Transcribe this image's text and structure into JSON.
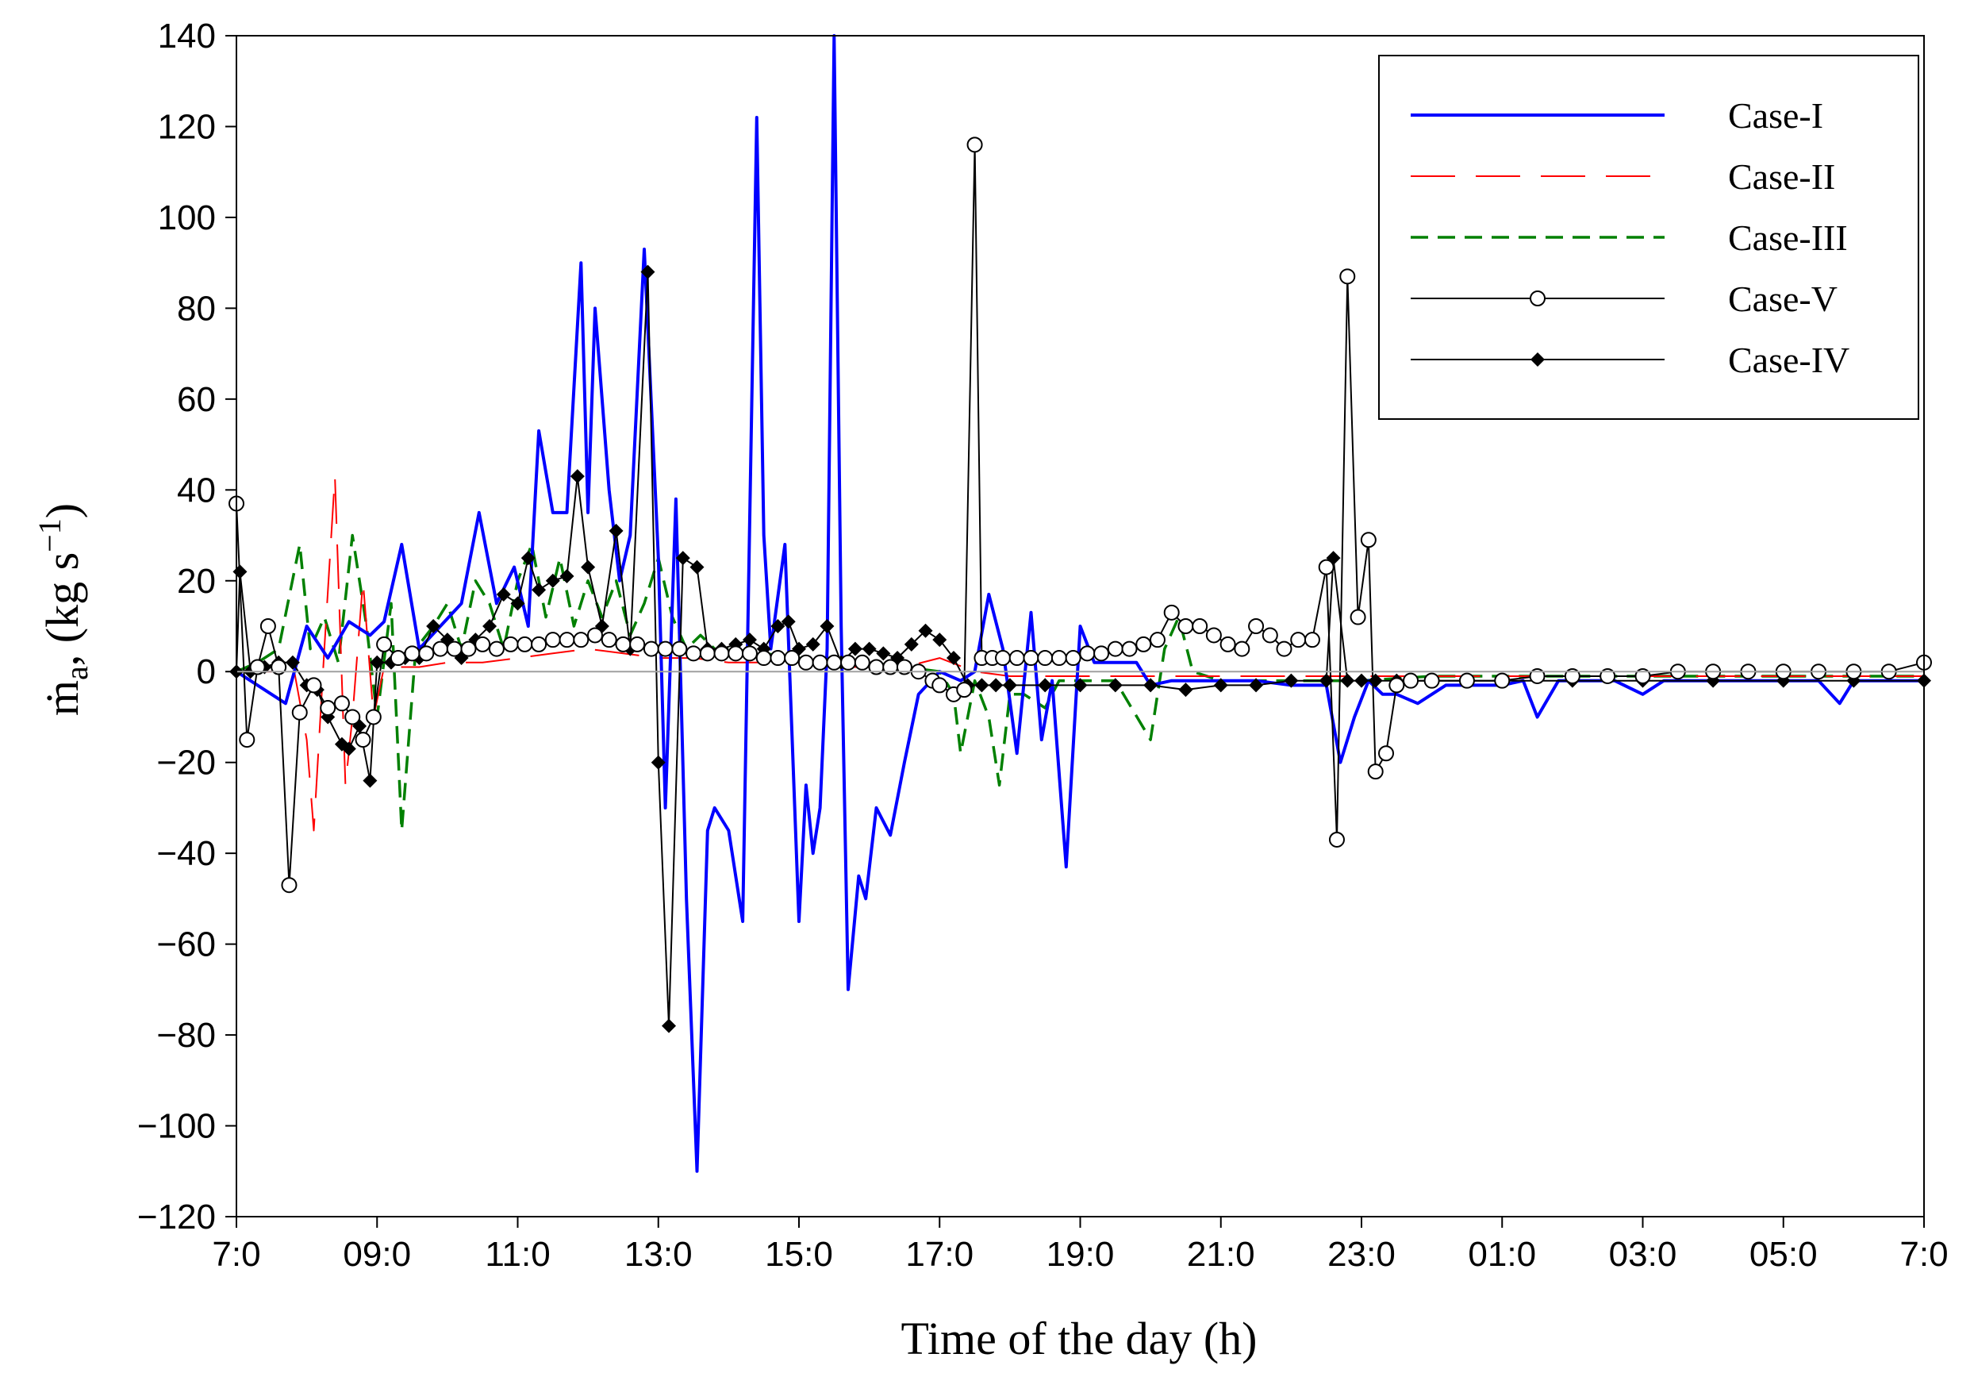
{
  "chart_data": {
    "type": "line",
    "xlabel": "Time of the day (h)",
    "ylabel": {
      "main": "ṁ",
      "sub": "a",
      "rest": ", (kg s",
      "sup": "−1",
      "close": ")"
    },
    "xlim": [
      7,
      31
    ],
    "ylim": [
      -120,
      140
    ],
    "x_ticks": [
      {
        "value": 7,
        "label": "7:0"
      },
      {
        "value": 9,
        "label": "09:0"
      },
      {
        "value": 11,
        "label": "11:0"
      },
      {
        "value": 13,
        "label": "13:0"
      },
      {
        "value": 15,
        "label": "15:0"
      },
      {
        "value": 17,
        "label": "17:0"
      },
      {
        "value": 19,
        "label": "19:0"
      },
      {
        "value": 21,
        "label": "21:0"
      },
      {
        "value": 23,
        "label": "23:0"
      },
      {
        "value": 25,
        "label": "01:0"
      },
      {
        "value": 27,
        "label": "03:0"
      },
      {
        "value": 29,
        "label": "05:0"
      },
      {
        "value": 31,
        "label": "7:0"
      }
    ],
    "y_ticks": [
      140,
      120,
      100,
      80,
      60,
      40,
      20,
      0,
      -20,
      -40,
      -60,
      -80,
      -100,
      -120
    ],
    "zero_line": true,
    "grid": false,
    "legend_position": "top-right",
    "series": [
      {
        "name": "Case-I",
        "color": "#0000ff",
        "style": "solid",
        "marker": "none",
        "x": [
          7.0,
          7.3,
          7.7,
          8.0,
          8.3,
          8.6,
          8.9,
          9.1,
          9.35,
          9.6,
          9.9,
          10.2,
          10.45,
          10.7,
          10.95,
          11.15,
          11.3,
          11.5,
          11.7,
          11.9,
          12.0,
          12.1,
          12.3,
          12.45,
          12.6,
          12.8,
          13.0,
          13.1,
          13.25,
          13.4,
          13.55,
          13.7,
          13.8,
          14.0,
          14.2,
          14.4,
          14.5,
          14.6,
          14.8,
          15.0,
          15.1,
          15.2,
          15.3,
          15.4,
          15.5,
          15.6,
          15.7,
          15.85,
          15.95,
          16.1,
          16.3,
          16.5,
          16.7,
          17.0,
          17.3,
          17.5,
          17.7,
          17.9,
          18.1,
          18.3,
          18.45,
          18.6,
          18.8,
          19.0,
          19.2,
          19.5,
          19.8,
          20.0,
          20.3,
          20.6,
          21.0,
          21.5,
          22.0,
          22.5,
          22.7,
          22.9,
          23.1,
          23.3,
          23.5,
          23.8,
          24.2,
          24.6,
          25.0,
          25.3,
          25.5,
          25.8,
          26.2,
          26.6,
          27.0,
          27.3,
          27.6,
          28.0,
          28.5,
          29.0,
          29.5,
          29.8,
          30.0,
          30.3,
          30.6,
          31.0
        ],
        "y": [
          0,
          -3,
          -7,
          10,
          3,
          11,
          8,
          11,
          28,
          5,
          10,
          15,
          35,
          15,
          23,
          10,
          53,
          35,
          35,
          90,
          35,
          80,
          40,
          20,
          30,
          93,
          25,
          -30,
          38,
          -50,
          -110,
          -35,
          -30,
          -35,
          -55,
          122,
          30,
          5,
          28,
          -55,
          -25,
          -40,
          -30,
          5,
          140,
          10,
          -70,
          -45,
          -50,
          -30,
          -36,
          -20,
          -5,
          0,
          -2,
          0,
          17,
          5,
          -18,
          13,
          -15,
          -2,
          -43,
          10,
          2,
          2,
          2,
          -3,
          -2,
          -2,
          -2,
          -2,
          -3,
          -3,
          -20,
          -10,
          -2,
          -5,
          -5,
          -7,
          -3,
          -3,
          -3,
          -2,
          -10,
          -2,
          -2,
          -2,
          -5,
          -2,
          -2,
          -2,
          -2,
          -2,
          -2,
          -7,
          -2,
          -2,
          -2,
          -2
        ]
      },
      {
        "name": "Case-II",
        "color": "#ff0000",
        "style": "dash-long",
        "marker": "none",
        "x": [
          7.0,
          7.5,
          7.8,
          8.0,
          8.1,
          8.25,
          8.4,
          8.55,
          8.65,
          8.8,
          8.95,
          9.1,
          9.3,
          9.6,
          10.0,
          10.5,
          11.0,
          11.5,
          12.0,
          12.5,
          13.0,
          13.5,
          14.0,
          14.5,
          15.0,
          15.5,
          16.0,
          16.5,
          17.0,
          17.5,
          18.0,
          18.5,
          19.0,
          19.5,
          20.0,
          20.5,
          21.0,
          22.0,
          23.0,
          24.0,
          26.0,
          28.0,
          31.0
        ],
        "y": [
          0,
          0,
          2,
          -15,
          -35,
          5,
          43,
          -25,
          -10,
          20,
          -10,
          1,
          1,
          1,
          2,
          2,
          3,
          4,
          5,
          4,
          3,
          3,
          2,
          2,
          2,
          1,
          1,
          1,
          3,
          0,
          -1,
          -1,
          -1,
          -1,
          -1,
          -1,
          -1,
          -1,
          -1,
          -1,
          -1,
          -1,
          -1
        ]
      },
      {
        "name": "Case-III",
        "color": "#008000",
        "style": "dash",
        "marker": "none",
        "x": [
          7.0,
          7.3,
          7.6,
          7.9,
          8.05,
          8.25,
          8.45,
          8.65,
          8.85,
          9.0,
          9.2,
          9.35,
          9.55,
          9.8,
          10.0,
          10.2,
          10.4,
          10.6,
          10.8,
          11.0,
          11.2,
          11.4,
          11.6,
          11.8,
          12.0,
          12.2,
          12.4,
          12.6,
          12.8,
          13.0,
          13.2,
          13.4,
          13.6,
          13.8,
          14.0,
          14.5,
          15.0,
          15.5,
          16.0,
          16.5,
          17.0,
          17.2,
          17.3,
          17.5,
          17.7,
          17.85,
          18.0,
          18.2,
          18.5,
          18.7,
          19.0,
          19.5,
          20.0,
          20.2,
          20.4,
          20.6,
          21.0,
          22.0,
          23.0,
          24.0,
          26.0,
          28.0,
          31.0
        ],
        "y": [
          0,
          2,
          5,
          28,
          5,
          12,
          2,
          30,
          10,
          -10,
          15,
          -35,
          5,
          10,
          15,
          5,
          20,
          15,
          5,
          20,
          28,
          12,
          25,
          10,
          20,
          12,
          20,
          8,
          15,
          25,
          12,
          5,
          8,
          5,
          5,
          4,
          3,
          2,
          2,
          1,
          0,
          -5,
          -18,
          -2,
          -10,
          -25,
          -5,
          -5,
          -8,
          -2,
          -2,
          -2,
          -15,
          5,
          12,
          0,
          -2,
          -2,
          -2,
          -1,
          -1,
          -1,
          -1
        ]
      },
      {
        "name": "Case-V",
        "color": "#000000",
        "style": "solid",
        "marker": "circle-open",
        "x": [
          7.0,
          7.15,
          7.3,
          7.45,
          7.6,
          7.75,
          7.9,
          8.1,
          8.3,
          8.5,
          8.65,
          8.8,
          8.95,
          9.1,
          9.3,
          9.5,
          9.7,
          9.9,
          10.1,
          10.3,
          10.5,
          10.7,
          10.9,
          11.1,
          11.3,
          11.5,
          11.7,
          11.9,
          12.1,
          12.3,
          12.5,
          12.7,
          12.9,
          13.1,
          13.3,
          13.5,
          13.7,
          13.9,
          14.1,
          14.3,
          14.5,
          14.7,
          14.9,
          15.1,
          15.3,
          15.5,
          15.7,
          15.9,
          16.1,
          16.3,
          16.5,
          16.7,
          16.9,
          17.0,
          17.2,
          17.35,
          17.5,
          17.6,
          17.75,
          17.9,
          18.1,
          18.3,
          18.5,
          18.7,
          18.9,
          19.1,
          19.3,
          19.5,
          19.7,
          19.9,
          20.1,
          20.3,
          20.5,
          20.7,
          20.9,
          21.1,
          21.3,
          21.5,
          21.7,
          21.9,
          22.1,
          22.3,
          22.5,
          22.65,
          22.8,
          22.95,
          23.1,
          23.2,
          23.35,
          23.5,
          23.7,
          24.0,
          24.5,
          25.0,
          25.5,
          26.0,
          26.5,
          27.0,
          27.5,
          28.0,
          28.5,
          29.0,
          29.5,
          30.0,
          30.5,
          31.0
        ],
        "y": [
          37,
          -15,
          1,
          10,
          1,
          -47,
          -9,
          -3,
          -8,
          -7,
          -10,
          -15,
          -10,
          6,
          3,
          4,
          4,
          5,
          5,
          5,
          6,
          5,
          6,
          6,
          6,
          7,
          7,
          7,
          8,
          7,
          6,
          6,
          5,
          5,
          5,
          4,
          4,
          4,
          4,
          4,
          3,
          3,
          3,
          2,
          2,
          2,
          2,
          2,
          1,
          1,
          1,
          0,
          -2,
          -3,
          -5,
          -4,
          116,
          3,
          3,
          3,
          3,
          3,
          3,
          3,
          3,
          4,
          4,
          5,
          5,
          6,
          7,
          13,
          10,
          10,
          8,
          6,
          5,
          10,
          8,
          5,
          7,
          7,
          23,
          -37,
          87,
          12,
          29,
          -22,
          -18,
          -3,
          -2,
          -2,
          -2,
          -2,
          -1,
          -1,
          -1,
          -1,
          0,
          0,
          0,
          0,
          0,
          0,
          0,
          2
        ]
      },
      {
        "name": "Case-IV",
        "color": "#000000",
        "style": "solid",
        "marker": "diamond-filled",
        "x": [
          7.0,
          7.05,
          7.2,
          7.4,
          7.6,
          7.8,
          8.0,
          8.15,
          8.3,
          8.5,
          8.6,
          8.75,
          8.9,
          9.0,
          9.2,
          9.4,
          9.6,
          9.8,
          10.0,
          10.2,
          10.4,
          10.6,
          10.8,
          11.0,
          11.15,
          11.3,
          11.5,
          11.7,
          11.85,
          12.0,
          12.2,
          12.4,
          12.6,
          12.85,
          13.0,
          13.15,
          13.35,
          13.55,
          13.7,
          13.9,
          14.1,
          14.3,
          14.5,
          14.7,
          14.85,
          15.0,
          15.2,
          15.4,
          15.6,
          15.8,
          16.0,
          16.2,
          16.4,
          16.6,
          16.8,
          17.0,
          17.2,
          17.4,
          17.6,
          17.8,
          18.0,
          18.5,
          19.0,
          19.5,
          20.0,
          20.5,
          21.0,
          21.5,
          22.0,
          22.5,
          22.6,
          22.8,
          23.0,
          23.2,
          23.5,
          24.0,
          24.5,
          25.0,
          26.0,
          27.0,
          28.0,
          29.0,
          30.0,
          31.0
        ],
        "y": [
          0,
          22,
          0,
          1,
          2,
          2,
          -3,
          -4,
          -10,
          -16,
          -17,
          -12,
          -24,
          2,
          2,
          3,
          3,
          10,
          7,
          3,
          7,
          10,
          17,
          15,
          25,
          18,
          20,
          21,
          43,
          23,
          10,
          31,
          5,
          88,
          -20,
          -78,
          25,
          23,
          5,
          5,
          6,
          7,
          5,
          10,
          11,
          5,
          6,
          10,
          2,
          5,
          5,
          4,
          3,
          6,
          9,
          7,
          3,
          -3,
          -3,
          -3,
          -3,
          -3,
          -3,
          -3,
          -3,
          -4,
          -3,
          -3,
          -2,
          -2,
          25,
          -2,
          -2,
          -2,
          -2,
          -2,
          -2,
          -2,
          -2,
          -2,
          -2,
          -2,
          -2,
          -2
        ]
      }
    ],
    "legend_order": [
      "Case-I",
      "Case-II",
      "Case-III",
      "Case-V",
      "Case-IV"
    ]
  }
}
